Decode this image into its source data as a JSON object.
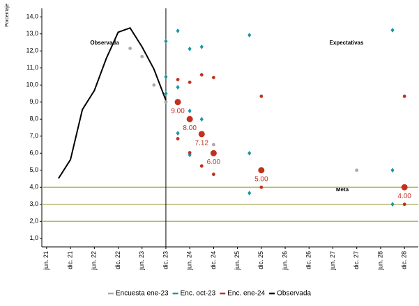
{
  "chart_data": {
    "type": "line",
    "y_label": "Porcentaje",
    "annotations": {
      "observed": "Observada",
      "expected": "Expectativas",
      "target": "Meta"
    },
    "xlim": [
      2021.4,
      2029.29
    ],
    "ylim": [
      0.5,
      14.5
    ],
    "xticks": [
      {
        "value": 2021.5,
        "label": "jun. 21"
      },
      {
        "value": 2022.0,
        "label": "dic. 21"
      },
      {
        "value": 2022.5,
        "label": "jun. 22"
      },
      {
        "value": 2023.0,
        "label": "dic. 22"
      },
      {
        "value": 2023.5,
        "label": "jun. 23"
      },
      {
        "value": 2024.0,
        "label": "dic. 23"
      },
      {
        "value": 2024.5,
        "label": "jun. 24"
      },
      {
        "value": 2025.0,
        "label": "dic. 24"
      },
      {
        "value": 2025.5,
        "label": "jun. 25"
      },
      {
        "value": 2026.0,
        "label": "dic. 25"
      },
      {
        "value": 2026.5,
        "label": "jun. 26"
      },
      {
        "value": 2027.0,
        "label": "dic. 26"
      },
      {
        "value": 2027.5,
        "label": "jun. 27"
      },
      {
        "value": 2028.0,
        "label": "dic. 27"
      },
      {
        "value": 2028.5,
        "label": "jun. 28"
      },
      {
        "value": 2029.0,
        "label": "dic. 28"
      }
    ],
    "yticks": [
      {
        "value": 1,
        "label": "1,0"
      },
      {
        "value": 2,
        "label": "2,0"
      },
      {
        "value": 3,
        "label": "3,0"
      },
      {
        "value": 4,
        "label": "4,0"
      },
      {
        "value": 5,
        "label": "5,0"
      },
      {
        "value": 6,
        "label": "6,0"
      },
      {
        "value": 7,
        "label": "7,0"
      },
      {
        "value": 8,
        "label": "8,0"
      },
      {
        "value": 9,
        "label": "9,0"
      },
      {
        "value": 10,
        "label": "10,0"
      },
      {
        "value": 11,
        "label": "11,0"
      },
      {
        "value": 12,
        "label": "12,0"
      },
      {
        "value": 13,
        "label": "13,0"
      },
      {
        "value": 14,
        "label": "14,0"
      }
    ],
    "vline": 2024.0,
    "vline_color": "#000000",
    "hlines": [
      4,
      3,
      2
    ],
    "hline_color": "#b8b46e",
    "series": [
      {
        "name": "Encuesta ene-23",
        "type": "scatter",
        "marker": "circle",
        "color": "#aaaaaa",
        "x": [
          2023.25,
          2023.5,
          2023.75,
          2024.0,
          2025.0,
          2028.0
        ],
        "values": [
          12.15,
          11.67,
          10.0,
          9.0,
          6.5,
          5.0
        ]
      },
      {
        "name": "Enc. oct-23",
        "type": "scatter",
        "marker": "diamond",
        "color": "#1a96a8",
        "x": [
          2024.0,
          2024.0,
          2024.0,
          2024.25,
          2024.25,
          2024.25,
          2024.5,
          2024.5,
          2024.5,
          2024.75,
          2024.75,
          2025.75,
          2025.75,
          2025.75,
          2028.75,
          2028.75,
          2028.75
        ],
        "values": [
          12.57,
          10.48,
          9.5,
          13.18,
          9.87,
          7.17,
          12.12,
          8.48,
          5.9,
          12.24,
          7.99,
          12.93,
          6.0,
          3.66,
          13.22,
          5.0,
          3.0
        ]
      },
      {
        "name": "Enc. ene-24",
        "type": "scatter",
        "marker": "circle",
        "color": "#c0321e",
        "x": [
          2024.25,
          2024.25,
          2024.25,
          2024.5,
          2024.5,
          2024.5,
          2024.75,
          2024.75,
          2024.75,
          2025.0,
          2025.0,
          2025.0,
          2026.0,
          2026.0,
          2026.0,
          2029.0,
          2029.0,
          2029.0
        ],
        "values": [
          10.32,
          9.0,
          6.85,
          10.16,
          8.0,
          6.03,
          10.6,
          7.12,
          5.25,
          10.44,
          6.0,
          4.76,
          9.34,
          5.0,
          4.0,
          9.34,
          4.0,
          3.0
        ],
        "value_labels": [
          null,
          "9.00",
          null,
          null,
          "8.00",
          null,
          null,
          "7.12",
          null,
          null,
          "6.00",
          null,
          null,
          "5.00",
          null,
          null,
          "4.00",
          null
        ]
      },
      {
        "name": "Observada",
        "type": "line",
        "color": "#000000",
        "x": [
          2021.75,
          2022.0,
          2022.25,
          2022.5,
          2022.75,
          2023.0,
          2023.25,
          2023.5,
          2023.75,
          2024.0
        ],
        "values": [
          4.52,
          5.62,
          8.56,
          9.67,
          11.55,
          13.1,
          13.35,
          12.24,
          10.93,
          9.1
        ]
      }
    ]
  }
}
